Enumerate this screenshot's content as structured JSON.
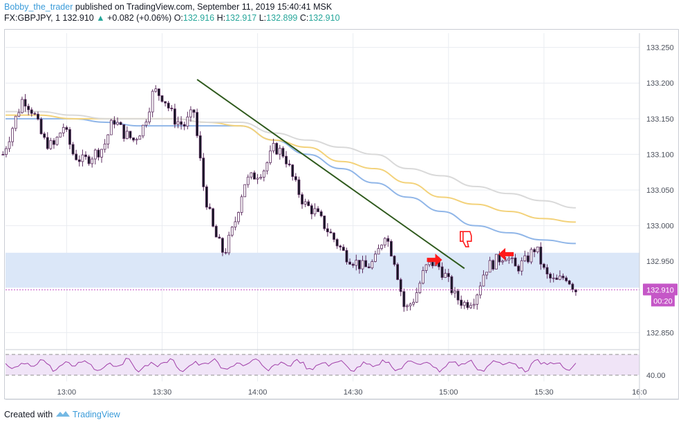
{
  "header": {
    "author": "Bobby_the_trader",
    "published_text": "published on TradingView.com, September 11, 2019 15:40:41 MSK",
    "symbol": "FX:GBPJPY, 1",
    "last": "132.910",
    "change": "+0.082 (+0.06%)",
    "o_label": "O:",
    "o_value": "132.916",
    "h_label": "H:",
    "h_value": "132.917",
    "l_label": "L:",
    "l_value": "132.899",
    "c_label": "C:",
    "c_value": "132.910"
  },
  "footer": {
    "created_with": "Created with",
    "brand": "TradingView"
  },
  "colors": {
    "bull": "#ffffff",
    "bear": "#131722",
    "wick": "#5b2b5e",
    "ma_fast": "#90b6e8",
    "ma_mid": "#f3d27a",
    "ma_slow": "#d9d9d9",
    "zone": "#dbe7f8",
    "trendline": "#2f5a1d",
    "arrow": "#ff1a1a",
    "rsi": "#a03ea8",
    "rsi_band": "#f0e4f7",
    "price_label": "#c557c7",
    "grid": "#e9ecf1"
  },
  "icons": [
    "right-arrow-icon",
    "left-arrow-icon",
    "thumbs-down-icon",
    "tradingview-logo-icon"
  ],
  "chart_data": {
    "type": "candlestick",
    "symbol": "FX:GBPJPY",
    "interval": "1",
    "y_axis": {
      "ticks": [
        "133.250",
        "133.200",
        "133.150",
        "133.100",
        "133.050",
        "133.000",
        "132.950",
        "132.850"
      ],
      "ylim": [
        132.83,
        133.27
      ]
    },
    "x_axis": {
      "ticks": [
        "13:00",
        "13:30",
        "14:00",
        "14:30",
        "15:00",
        "15:30",
        "16:0"
      ]
    },
    "grid": true,
    "current_price": "132.910",
    "countdown": "00:20",
    "rsi": {
      "tick": "40.00",
      "upper": 60,
      "lower": 40
    },
    "support_zone": [
      132.913,
      132.962
    ],
    "trendline": [
      {
        "t": "13:41",
        "p": 133.205
      },
      {
        "t": "15:05",
        "p": 132.94
      }
    ],
    "close_series_approx": [
      133.1,
      133.14,
      133.18,
      133.16,
      133.12,
      133.11,
      133.14,
      133.1,
      133.09,
      133.1,
      133.11,
      133.15,
      133.13,
      133.12,
      133.14,
      133.19,
      133.18,
      133.15,
      133.14,
      133.16,
      133.05,
      132.99,
      132.96,
      133.0,
      133.06,
      133.07,
      133.08,
      133.11,
      133.1,
      133.06,
      133.03,
      133.02,
      133.0,
      132.98,
      132.96,
      132.95,
      132.94,
      132.95,
      132.99,
      132.95,
      132.88,
      132.9,
      132.94,
      132.95,
      132.93,
      132.9,
      132.89,
      132.9,
      132.94,
      132.95,
      132.96,
      132.94,
      132.95,
      132.97,
      132.93,
      132.92,
      132.93,
      132.91
    ],
    "moving_averages": [
      {
        "color": "#90b6e8",
        "values": [
          133.15,
          133.15,
          133.15,
          133.145,
          133.14,
          133.14,
          133.14,
          133.14,
          133.12,
          133.1,
          133.08,
          133.06,
          133.04,
          133.02,
          133.0,
          132.99,
          132.98,
          132.975
        ]
      },
      {
        "color": "#f3d27a",
        "values": [
          133.155,
          133.155,
          133.15,
          133.15,
          133.15,
          133.15,
          133.145,
          133.14,
          133.12,
          133.11,
          133.09,
          133.08,
          133.06,
          133.04,
          133.03,
          133.02,
          133.01,
          133.005
        ]
      },
      {
        "color": "#d9d9d9",
        "values": [
          133.16,
          133.16,
          133.155,
          133.15,
          133.15,
          133.15,
          133.145,
          133.145,
          133.13,
          133.12,
          133.11,
          133.1,
          133.08,
          133.07,
          133.055,
          133.045,
          133.035,
          133.025
        ]
      }
    ]
  }
}
